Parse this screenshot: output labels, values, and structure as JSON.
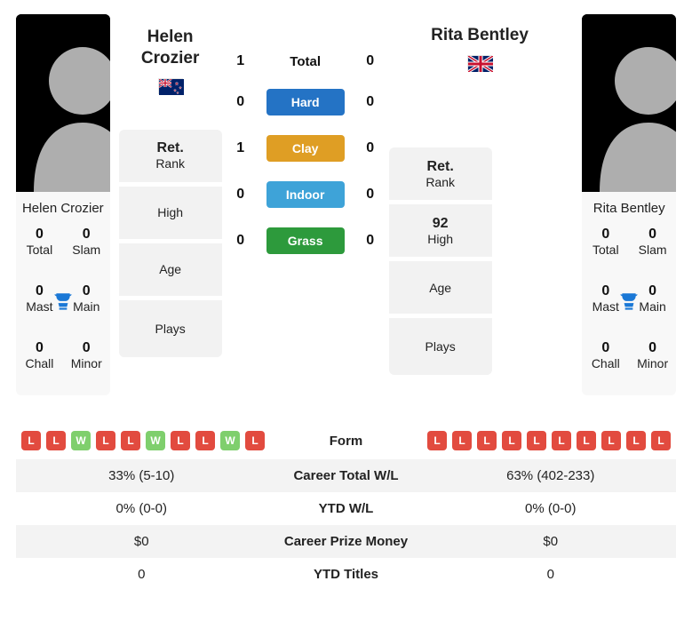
{
  "players": {
    "p1": {
      "name": "Helen Crozier",
      "nation": "new-zealand",
      "titles": {
        "total": 0,
        "slam": 0,
        "mast": 0,
        "main": 0,
        "chall": 0,
        "minor": 0
      },
      "title_labels": {
        "total": "Total",
        "slam": "Slam",
        "mast": "Mast",
        "main": "Main",
        "chall": "Chall",
        "minor": "Minor"
      },
      "form": [
        "L",
        "L",
        "W",
        "L",
        "L",
        "W",
        "L",
        "L",
        "W",
        "L"
      ]
    },
    "p2": {
      "name": "Rita Bentley",
      "nation": "united-kingdom",
      "titles": {
        "total": 0,
        "slam": 0,
        "mast": 0,
        "main": 0,
        "chall": 0,
        "minor": 0
      },
      "title_labels": {
        "total": "Total",
        "slam": "Slam",
        "mast": "Mast",
        "main": "Main",
        "chall": "Chall",
        "minor": "Minor"
      },
      "form": [
        "L",
        "L",
        "L",
        "L",
        "L",
        "L",
        "L",
        "L",
        "L",
        "L"
      ]
    }
  },
  "info_labels": {
    "rank": "Rank",
    "ret": "Ret.",
    "high": "High",
    "age": "Age",
    "plays": "Plays"
  },
  "info_values": {
    "p1": {
      "rank_prefix": "Ret.",
      "high": "",
      "age": "",
      "plays": ""
    },
    "p2": {
      "rank_prefix": "Ret.",
      "high": "92",
      "age": "",
      "plays": ""
    }
  },
  "h2h": {
    "total_label": "Total",
    "surfaces": [
      {
        "label": "Hard",
        "color": "#2473c5",
        "p1": 0,
        "p2": 0
      },
      {
        "label": "Clay",
        "color": "#df9e24",
        "p1": 1,
        "p2": 0
      },
      {
        "label": "Indoor",
        "color": "#3ea3d8",
        "p1": 0,
        "p2": 0
      },
      {
        "label": "Grass",
        "color": "#2d9a3c",
        "p1": 0,
        "p2": 0
      }
    ],
    "total": {
      "p1": 1,
      "p2": 0
    }
  },
  "compare": {
    "rows": [
      {
        "label": "Form",
        "type": "form"
      },
      {
        "label": "Career Total W/L",
        "p1": "33% (5-10)",
        "p2": "63% (402-233)"
      },
      {
        "label": "YTD W/L",
        "p1": "0% (0-0)",
        "p2": "0% (0-0)"
      },
      {
        "label": "Career Prize Money",
        "p1": "$0",
        "p2": "$0"
      },
      {
        "label": "YTD Titles",
        "p1": "0",
        "p2": "0"
      }
    ]
  },
  "colors": {
    "badge_L": "#e24b3f",
    "badge_W": "#7fcf6d",
    "trophy": "#1a78d6"
  }
}
